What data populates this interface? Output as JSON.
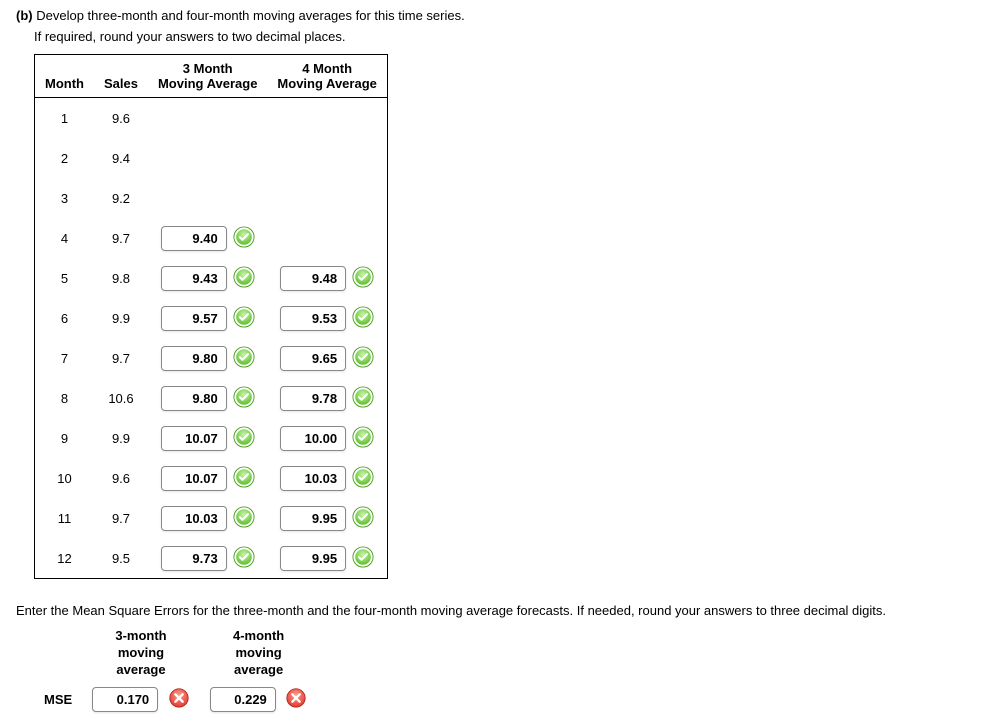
{
  "question": {
    "label": "(b)",
    "text": "Develop three-month and four-month moving averages for this time series.",
    "instructions": "If required, round your answers to two decimal places."
  },
  "table": {
    "headers": {
      "month": "Month",
      "sales": "Sales",
      "ma3_line1": "3 Month",
      "ma3_line2": "Moving Average",
      "ma4_line1": "4 Month",
      "ma4_line2": "Moving Average"
    },
    "rows": [
      {
        "month": "1",
        "sales": "9.6",
        "ma3": "",
        "ma3_mark": "",
        "ma4": "",
        "ma4_mark": ""
      },
      {
        "month": "2",
        "sales": "9.4",
        "ma3": "",
        "ma3_mark": "",
        "ma4": "",
        "ma4_mark": ""
      },
      {
        "month": "3",
        "sales": "9.2",
        "ma3": "",
        "ma3_mark": "",
        "ma4": "",
        "ma4_mark": ""
      },
      {
        "month": "4",
        "sales": "9.7",
        "ma3": "9.40",
        "ma3_mark": "correct",
        "ma4": "",
        "ma4_mark": ""
      },
      {
        "month": "5",
        "sales": "9.8",
        "ma3": "9.43",
        "ma3_mark": "correct",
        "ma4": "9.48",
        "ma4_mark": "correct"
      },
      {
        "month": "6",
        "sales": "9.9",
        "ma3": "9.57",
        "ma3_mark": "correct",
        "ma4": "9.53",
        "ma4_mark": "correct"
      },
      {
        "month": "7",
        "sales": "9.7",
        "ma3": "9.80",
        "ma3_mark": "correct",
        "ma4": "9.65",
        "ma4_mark": "correct"
      },
      {
        "month": "8",
        "sales": "10.6",
        "ma3": "9.80",
        "ma3_mark": "correct",
        "ma4": "9.78",
        "ma4_mark": "correct"
      },
      {
        "month": "9",
        "sales": "9.9",
        "ma3": "10.07",
        "ma3_mark": "correct",
        "ma4": "10.00",
        "ma4_mark": "correct"
      },
      {
        "month": "10",
        "sales": "9.6",
        "ma3": "10.07",
        "ma3_mark": "correct",
        "ma4": "10.03",
        "ma4_mark": "correct"
      },
      {
        "month": "11",
        "sales": "9.7",
        "ma3": "10.03",
        "ma3_mark": "correct",
        "ma4": "9.95",
        "ma4_mark": "correct"
      },
      {
        "month": "12",
        "sales": "9.5",
        "ma3": "9.73",
        "ma3_mark": "correct",
        "ma4": "9.95",
        "ma4_mark": "correct"
      }
    ]
  },
  "mse": {
    "prompt": "Enter the Mean Square Errors for the three-month and the four-month moving average forecasts. If needed, round your answers to three decimal digits.",
    "headers": {
      "h3_l1": "3-month",
      "h3_l2": "moving",
      "h3_l3": "average",
      "h4_l1": "4-month",
      "h4_l2": "moving",
      "h4_l3": "average"
    },
    "row_label": "MSE",
    "values": {
      "m3": "0.170",
      "m3_mark": "wrong",
      "m4": "0.229",
      "m4_mark": "wrong"
    }
  },
  "icons": {
    "correct_fill": "#5fbf2f",
    "correct_ring": "#4a9e1f",
    "wrong_fill": "#e23b2e",
    "wrong_ring": "#b02a20"
  }
}
